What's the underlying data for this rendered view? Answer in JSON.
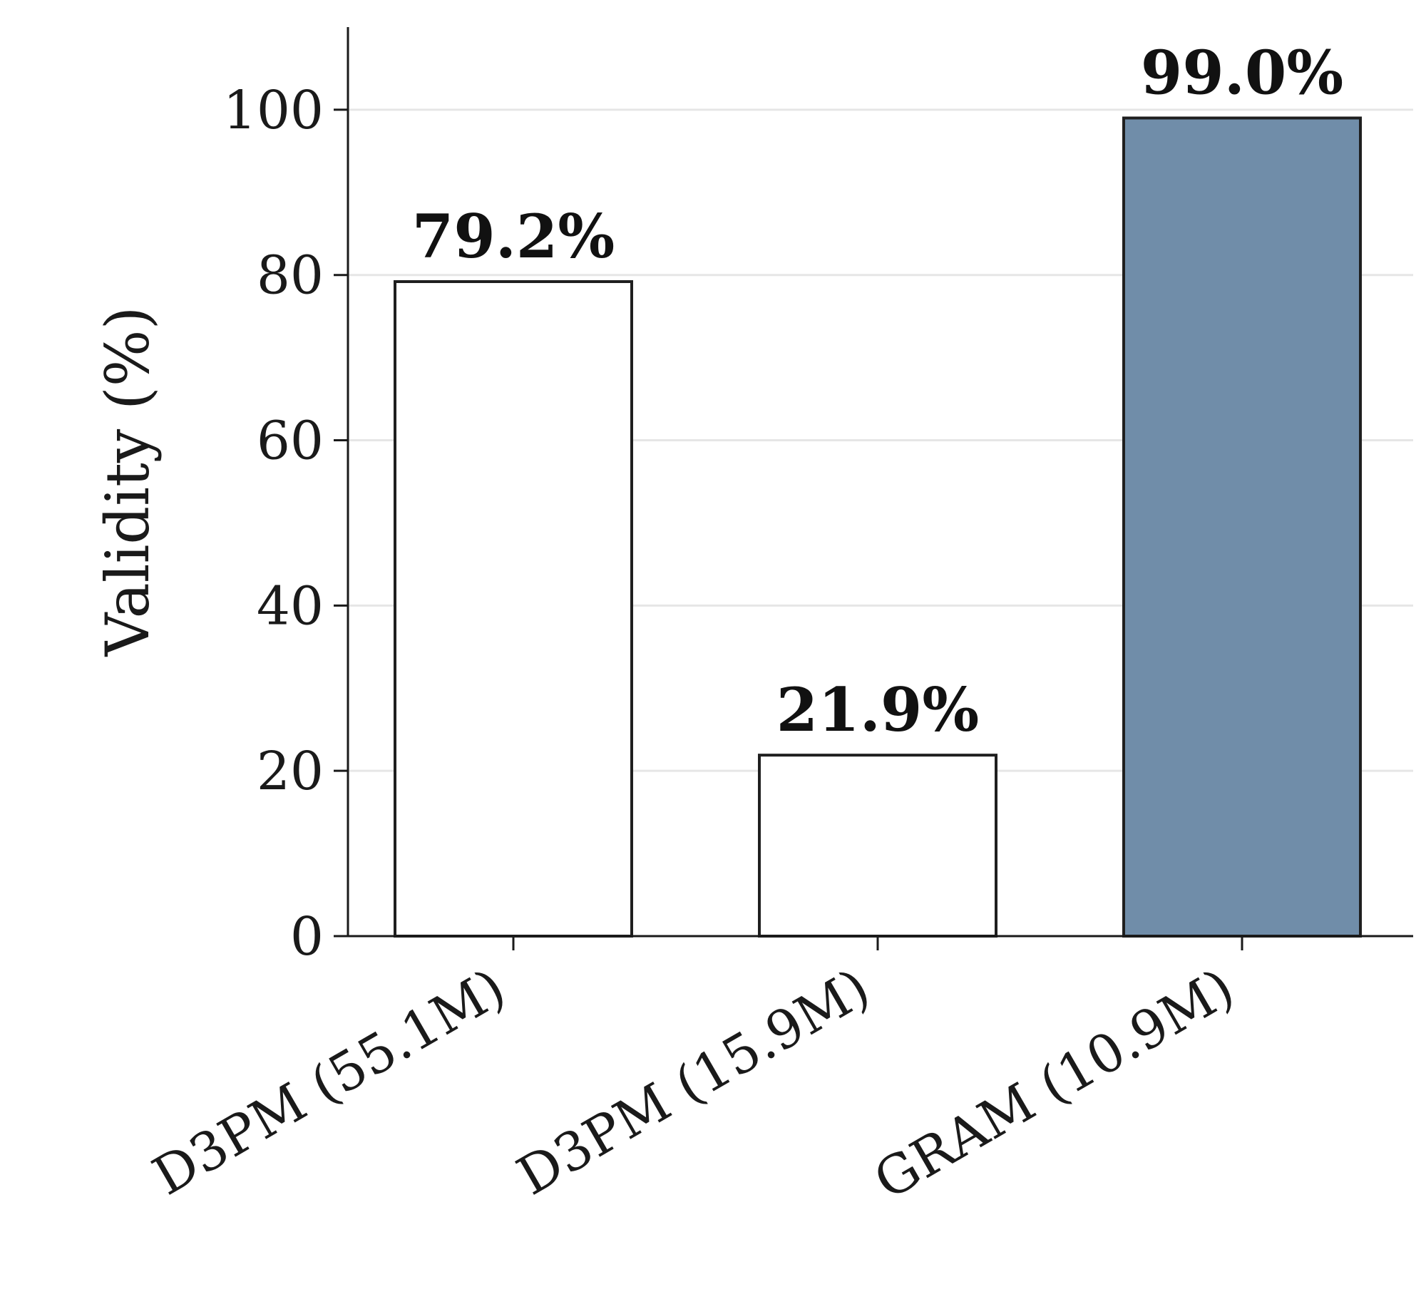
{
  "chart_data": {
    "type": "bar",
    "title": "",
    "xlabel": "",
    "ylabel": "Validity (%)",
    "ylim": [
      0,
      110
    ],
    "yticks": [
      0,
      20,
      40,
      60,
      80,
      100
    ],
    "categories": [
      "D3PM (55.1M)",
      "D3PM (15.9M)",
      "GRAM (10.9M)"
    ],
    "values": [
      79.2,
      21.9,
      99.0
    ],
    "value_labels": [
      "79.2%",
      "21.9%",
      "99.0%"
    ],
    "bar_fill_colors": [
      "#ffffff",
      "#ffffff",
      "#708da9"
    ],
    "bar_edge_color": "#1f1f1f",
    "grid": "horizontal",
    "legend": "none"
  }
}
